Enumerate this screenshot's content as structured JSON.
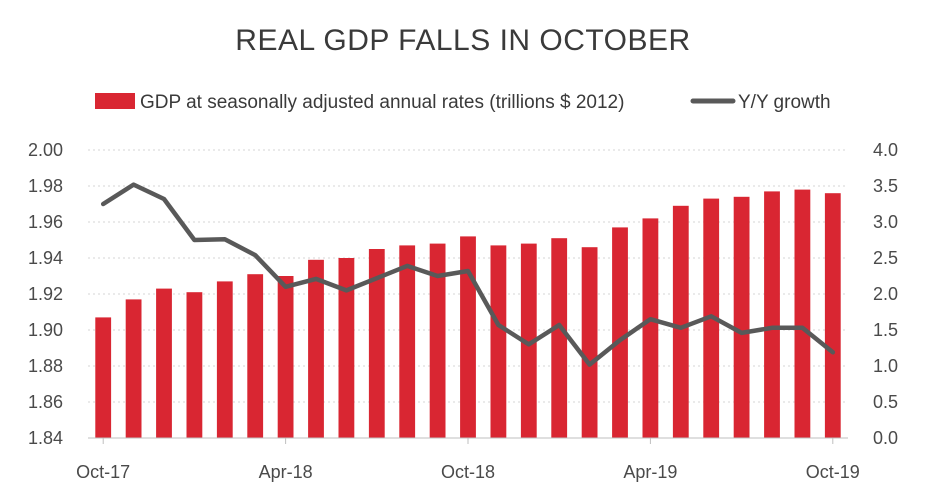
{
  "chart_data": {
    "type": "bar+line",
    "title": "REAL GDP FALLS IN OCTOBER",
    "colors": {
      "bar": "#d92632",
      "line": "#595959"
    },
    "legend_position": "top",
    "grid": true,
    "x_tick_labels": [
      "Oct-17",
      "Apr-18",
      "Oct-18",
      "Apr-19",
      "Oct-19"
    ],
    "x_tick_index": [
      0,
      6,
      12,
      18,
      24
    ],
    "left_axis": {
      "ylim": [
        1.84,
        2.0
      ],
      "ticks": [
        "1.84",
        "1.86",
        "1.88",
        "1.90",
        "1.92",
        "1.94",
        "1.96",
        "1.98",
        "2.00"
      ]
    },
    "right_axis": {
      "ylim": [
        0.0,
        4.0
      ],
      "ticks": [
        "0.0",
        "0.5",
        "1.0",
        "1.5",
        "2.0",
        "2.5",
        "3.0",
        "3.5",
        "4.0"
      ]
    },
    "series": [
      {
        "name": "GDP at seasonally adjusted annual rates (trillions $ 2012)",
        "type": "bar",
        "axis": "left",
        "values": [
          1.907,
          1.917,
          1.923,
          1.921,
          1.927,
          1.931,
          1.93,
          1.939,
          1.94,
          1.945,
          1.947,
          1.948,
          1.952,
          1.947,
          1.948,
          1.951,
          1.946,
          1.957,
          1.962,
          1.969,
          1.973,
          1.974,
          1.977,
          1.978,
          1.976
        ]
      },
      {
        "name": "Y/Y growth",
        "type": "line",
        "axis": "right",
        "values": [
          3.25,
          3.52,
          3.32,
          2.75,
          2.76,
          2.54,
          2.1,
          2.21,
          2.05,
          2.22,
          2.39,
          2.25,
          2.32,
          1.57,
          1.3,
          1.57,
          1.02,
          1.36,
          1.65,
          1.53,
          1.69,
          1.46,
          1.53,
          1.53,
          1.19
        ]
      }
    ]
  }
}
